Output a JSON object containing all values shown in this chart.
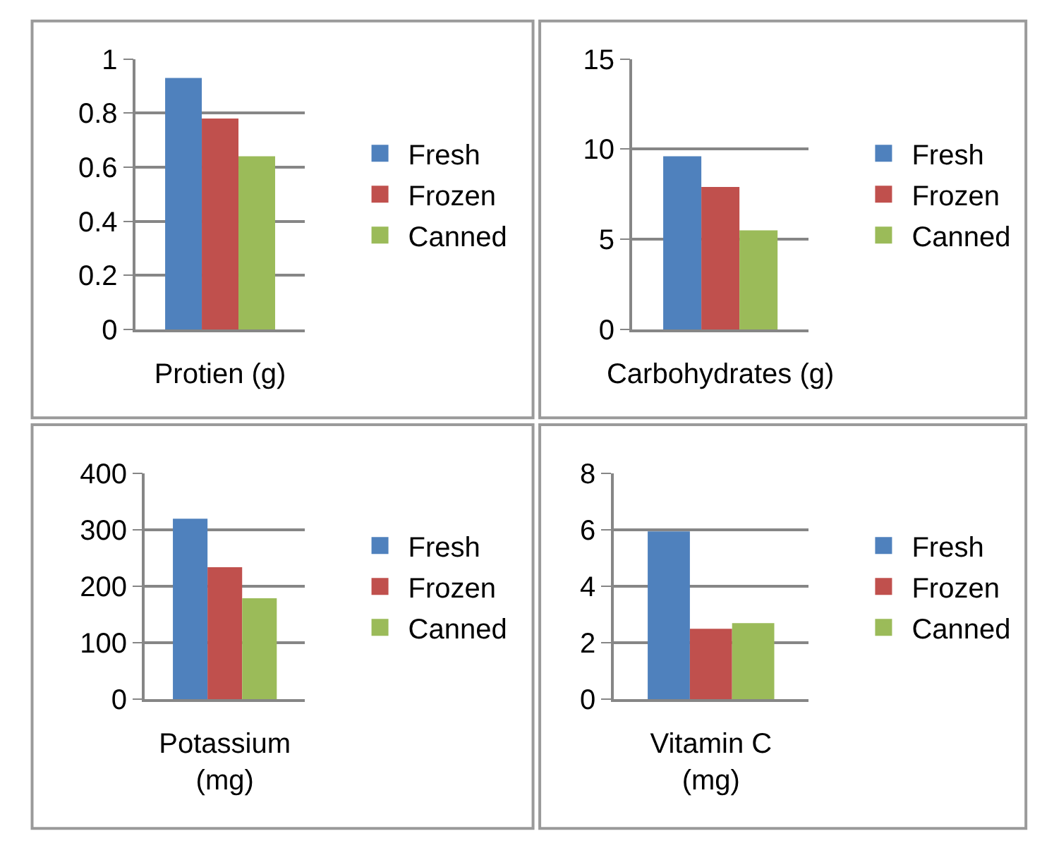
{
  "chart_data": [
    {
      "type": "bar",
      "categories": [
        "Protien (g)"
      ],
      "ylim": [
        0,
        1
      ],
      "yticks": [
        0,
        0.2,
        0.4,
        0.6,
        0.8,
        1
      ],
      "grid": "y",
      "legend": "right",
      "series": [
        {
          "name": "Fresh",
          "color": "#4f81bd",
          "values": [
            0.93
          ]
        },
        {
          "name": "Frozen",
          "color": "#c0504d",
          "values": [
            0.78
          ]
        },
        {
          "name": "Canned",
          "color": "#9bbb59",
          "values": [
            0.64
          ]
        }
      ]
    },
    {
      "type": "bar",
      "categories": [
        "Carbohydrates (g)"
      ],
      "ylim": [
        0,
        15
      ],
      "yticks": [
        0,
        5,
        10,
        15
      ],
      "grid": "y",
      "legend": "right",
      "series": [
        {
          "name": "Fresh",
          "color": "#4f81bd",
          "values": [
            9.6
          ]
        },
        {
          "name": "Frozen",
          "color": "#c0504d",
          "values": [
            7.9
          ]
        },
        {
          "name": "Canned",
          "color": "#9bbb59",
          "values": [
            5.5
          ]
        }
      ]
    },
    {
      "type": "bar",
      "categories": [
        "Potassium\n(mg)"
      ],
      "ylim": [
        0,
        400
      ],
      "yticks": [
        0,
        100,
        200,
        300,
        400
      ],
      "grid": "y",
      "legend": "right",
      "series": [
        {
          "name": "Fresh",
          "color": "#4f81bd",
          "values": [
            320
          ]
        },
        {
          "name": "Frozen",
          "color": "#c0504d",
          "values": [
            234
          ]
        },
        {
          "name": "Canned",
          "color": "#9bbb59",
          "values": [
            179
          ]
        }
      ]
    },
    {
      "type": "bar",
      "categories": [
        "Vitamin C\n(mg)"
      ],
      "ylim": [
        0,
        8
      ],
      "yticks": [
        0,
        2,
        4,
        6,
        8
      ],
      "grid": "y",
      "legend": "right",
      "series": [
        {
          "name": "Fresh",
          "color": "#4f81bd",
          "values": [
            5.95
          ]
        },
        {
          "name": "Frozen",
          "color": "#c0504d",
          "values": [
            2.5
          ]
        },
        {
          "name": "Canned",
          "color": "#9bbb59",
          "values": [
            2.7
          ]
        }
      ]
    }
  ]
}
